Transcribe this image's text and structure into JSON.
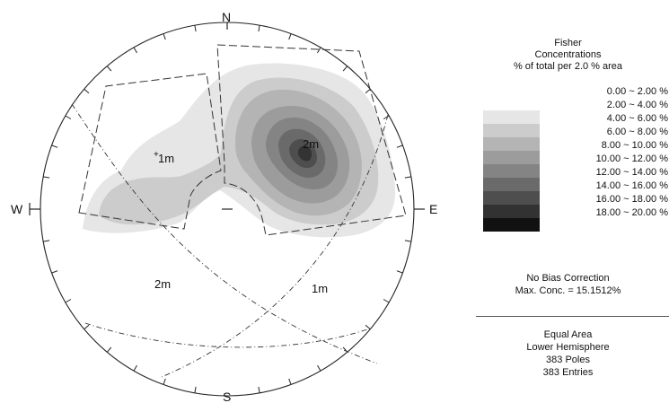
{
  "net": {
    "directions": {
      "north": "N",
      "south": "S",
      "east": "E",
      "west": "W"
    },
    "labels": {
      "cluster_1": "1m",
      "cluster_2": "2m",
      "plane_2": "2m",
      "plane_1": "1m"
    }
  },
  "legend": {
    "title_lines": [
      "Fisher",
      "Concentrations",
      "% of total per 2.0 % area"
    ],
    "bins": [
      {
        "range": "0.00 ~  2.00 %",
        "color": "#ffffff"
      },
      {
        "range": "2.00 ~  4.00 %",
        "color": "#e6e6e6"
      },
      {
        "range": "4.00 ~  6.00 %",
        "color": "#cccccc"
      },
      {
        "range": "6.00 ~  8.00 %",
        "color": "#b4b4b4"
      },
      {
        "range": "8.00 ~ 10.00 %",
        "color": "#9c9c9c"
      },
      {
        "range": "10.00 ~ 12.00 %",
        "color": "#848484"
      },
      {
        "range": "12.00 ~ 14.00 %",
        "color": "#6a6a6a"
      },
      {
        "range": "14.00 ~ 16.00 %",
        "color": "#4e4e4e"
      },
      {
        "range": "16.00 ~ 18.00 %",
        "color": "#323232"
      },
      {
        "range": "18.00 ~ 20.00 %",
        "color": "#111111"
      }
    ],
    "bias_note": "No Bias Correction",
    "max_conc": "Max. Conc. = 15.1512%",
    "projection": "Equal Area",
    "hemisphere": "Lower Hemisphere",
    "poles": "383 Poles",
    "entries": "383 Entries"
  }
}
